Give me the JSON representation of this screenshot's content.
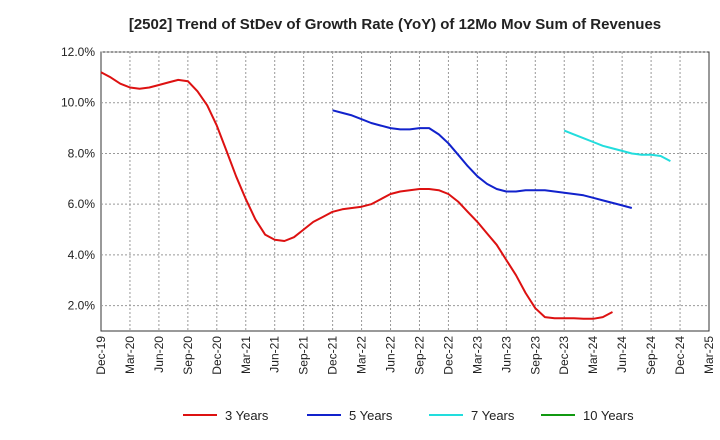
{
  "chart_data": {
    "type": "line",
    "title": "[2502]  Trend of StDev of Growth Rate (YoY) of 12Mo Mov Sum of Revenues",
    "xlabel": "",
    "ylabel": "",
    "ylim": [
      1.0,
      12.0
    ],
    "y_ticks": [
      2.0,
      4.0,
      6.0,
      8.0,
      10.0,
      12.0
    ],
    "y_tick_labels": [
      "2.0%",
      "4.0%",
      "6.0%",
      "8.0%",
      "10.0%",
      "12.0%"
    ],
    "x_tick_labels": [
      "Dec-19",
      "Mar-20",
      "Jun-20",
      "Sep-20",
      "Dec-20",
      "Mar-21",
      "Jun-21",
      "Sep-21",
      "Dec-21",
      "Mar-22",
      "Jun-22",
      "Sep-22",
      "Dec-22",
      "Mar-23",
      "Jun-23",
      "Sep-23",
      "Dec-23",
      "Mar-24",
      "Jun-24",
      "Sep-24",
      "Dec-24",
      "Mar-25"
    ],
    "grid": true,
    "legend_position": "bottom",
    "series": [
      {
        "name": "3 Years",
        "color": "#dd1111",
        "start_index": 0,
        "values": [
          11.2,
          11.0,
          10.75,
          10.6,
          10.55,
          10.6,
          10.7,
          10.8,
          10.9,
          10.85,
          10.45,
          9.9,
          9.1,
          8.1,
          7.1,
          6.2,
          5.4,
          4.8,
          4.6,
          4.55,
          4.7,
          5.0,
          5.3,
          5.5,
          5.7,
          5.8,
          5.85,
          5.9,
          6.0,
          6.2,
          6.4,
          6.5,
          6.55,
          6.6,
          6.6,
          6.55,
          6.4,
          6.1,
          5.7,
          5.3,
          4.85,
          4.4,
          3.8,
          3.2,
          2.5,
          1.9,
          1.55,
          1.5,
          1.5,
          1.5,
          1.48,
          1.48,
          1.55,
          1.75
        ]
      },
      {
        "name": "5 Years",
        "color": "#1122cc",
        "start_index": 24,
        "values": [
          9.7,
          9.6,
          9.5,
          9.35,
          9.2,
          9.1,
          9.0,
          8.95,
          8.95,
          9.0,
          9.0,
          8.75,
          8.4,
          7.95,
          7.5,
          7.1,
          6.8,
          6.6,
          6.5,
          6.5,
          6.55,
          6.55,
          6.55,
          6.5,
          6.45,
          6.4,
          6.35,
          6.25,
          6.15,
          6.05,
          5.95,
          5.85
        ]
      },
      {
        "name": "7 Years",
        "color": "#22dddd",
        "start_index": 48,
        "values": [
          8.9,
          8.75,
          8.6,
          8.45,
          8.3,
          8.2,
          8.1,
          8.0,
          7.95,
          7.95,
          7.9,
          7.7
        ]
      },
      {
        "name": "10 Years",
        "color": "#119911",
        "start_index": 0,
        "values": []
      }
    ]
  }
}
